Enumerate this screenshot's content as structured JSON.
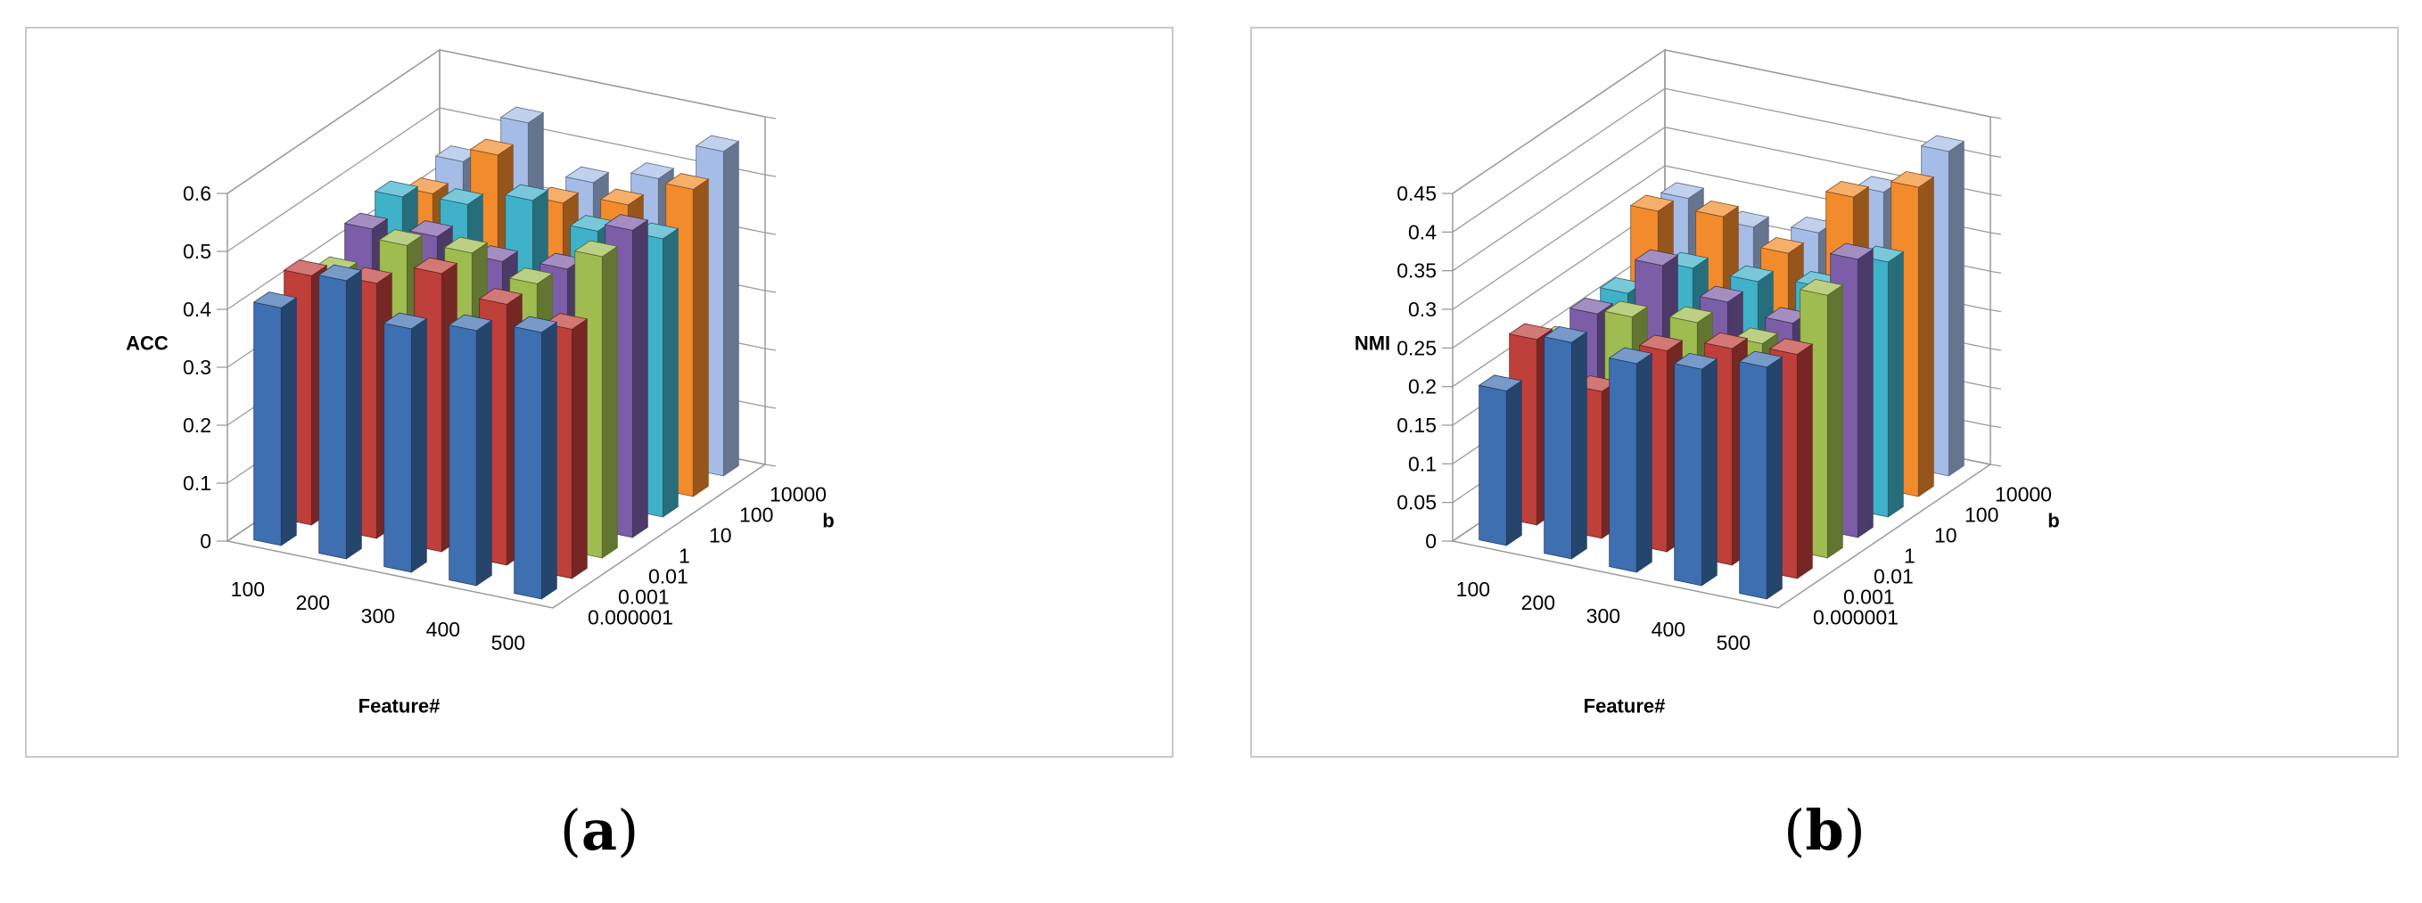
{
  "chart_data": [
    {
      "type": "bar3d",
      "panel_label": "a",
      "ylabel": "ACC",
      "xlabel": "Feature#",
      "zlabel": "b",
      "ylim": [
        0,
        0.6
      ],
      "yticks": [
        "0",
        "0.1",
        "0.2",
        "0.3",
        "0.4",
        "0.5",
        "0.6"
      ],
      "x_categories": [
        "100",
        "200",
        "300",
        "400",
        "500"
      ],
      "b_categories": [
        "0.000001",
        "0.001",
        "0.01",
        "1",
        "10",
        "100",
        "10000"
      ],
      "series_colors": [
        "#3e6fb0",
        "#bf3f3a",
        "#9ebc4f",
        "#7b5ea7",
        "#3fb1c8",
        "#f28b2c",
        "#a5bde6"
      ],
      "values": [
        [
          0.41,
          0.43,
          0.4,
          0.44,
          0.46,
          0.43,
          0.45
        ],
        [
          0.48,
          0.44,
          0.47,
          0.45,
          0.47,
          0.52,
          0.54
        ],
        [
          0.42,
          0.48,
          0.48,
          0.43,
          0.5,
          0.46,
          0.46
        ],
        [
          0.44,
          0.45,
          0.45,
          0.44,
          0.47,
          0.48,
          0.49
        ],
        [
          0.46,
          0.43,
          0.52,
          0.53,
          0.48,
          0.53,
          0.56
        ]
      ]
    },
    {
      "type": "bar3d",
      "panel_label": "b",
      "ylabel": "NMI",
      "xlabel": "Feature#",
      "zlabel": "b",
      "ylim": [
        0,
        0.45
      ],
      "yticks": [
        "0",
        "0.05",
        "0.1",
        "0.15",
        "0.2",
        "0.25",
        "0.3",
        "0.35",
        "0.4",
        "0.45"
      ],
      "x_categories": [
        "100",
        "200",
        "300",
        "400",
        "500"
      ],
      "b_categories": [
        "0.000001",
        "0.001",
        "0.01",
        "1",
        "10",
        "100",
        "10000"
      ],
      "series_colors": [
        "#3e6fb0",
        "#bf3f3a",
        "#9ebc4f",
        "#7b5ea7",
        "#3fb1c8",
        "#f28b2c",
        "#a5bde6"
      ],
      "values": [
        [
          0.2,
          0.24,
          0.21,
          0.22,
          0.22,
          0.3,
          0.29
        ],
        [
          0.28,
          0.19,
          0.26,
          0.3,
          0.27,
          0.31,
          0.27
        ],
        [
          0.27,
          0.26,
          0.27,
          0.27,
          0.27,
          0.28,
          0.28
        ],
        [
          0.28,
          0.28,
          0.26,
          0.26,
          0.28,
          0.37,
          0.35
        ],
        [
          0.3,
          0.29,
          0.34,
          0.36,
          0.33,
          0.4,
          0.42
        ]
      ]
    }
  ]
}
